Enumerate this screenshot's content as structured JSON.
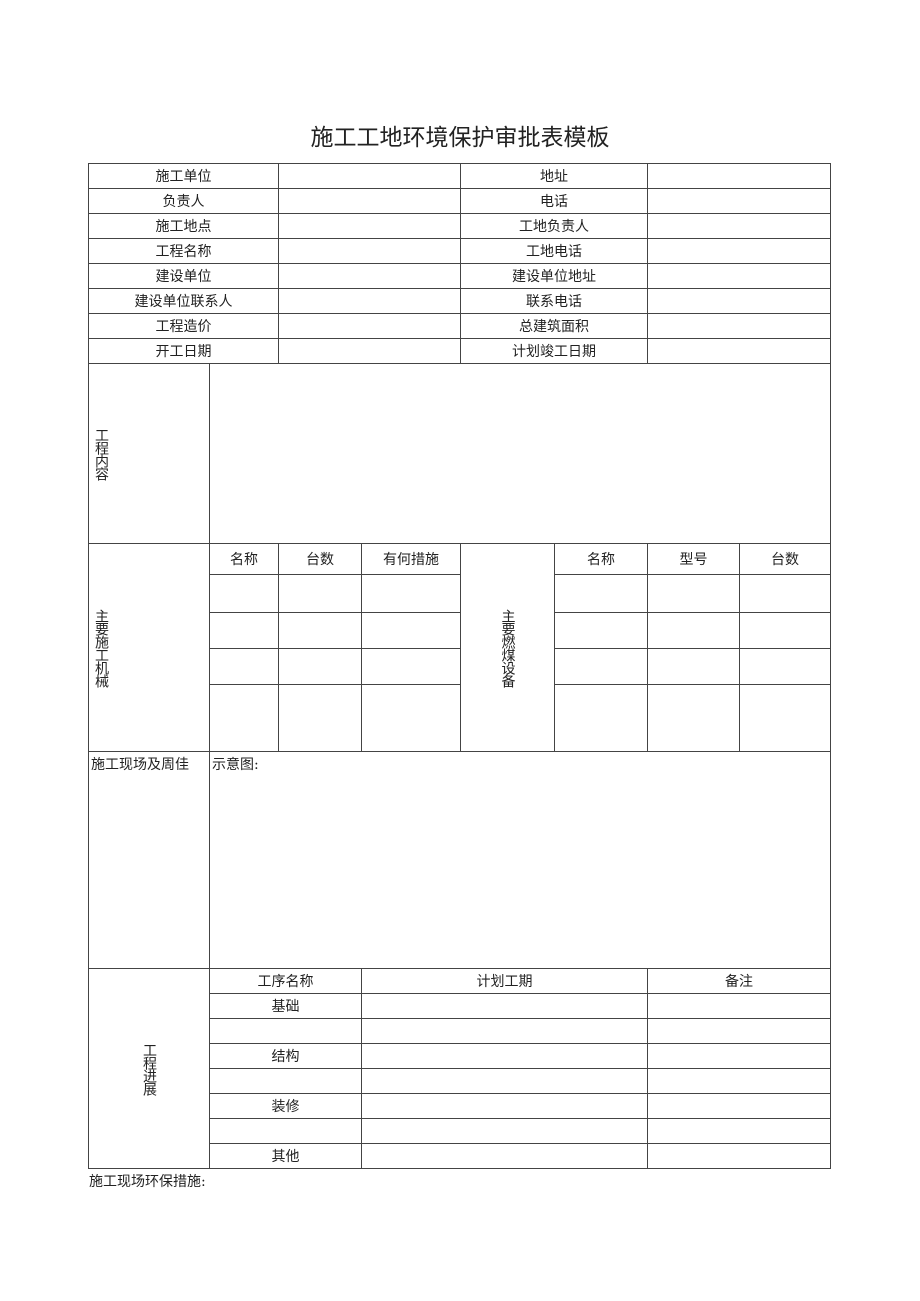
{
  "title": "施工工地环境保护审批表模板",
  "info_rows": [
    {
      "left": "施工单位",
      "right": "地址"
    },
    {
      "left": "负责人",
      "right": "电话"
    },
    {
      "left": "施工地点",
      "right": "工地负责人"
    },
    {
      "left": "工程名称",
      "right": "工地电话"
    },
    {
      "left": "建设单位",
      "right": "建设单位地址"
    },
    {
      "left": "建设单位联系人",
      "right": "联系电话"
    },
    {
      "left": "工程造价",
      "right": "总建筑面积"
    },
    {
      "left": "开工日期",
      "right": "计划竣工日期"
    }
  ],
  "content_label": "工程内容",
  "machinery": {
    "label": "主要施工机械",
    "headers": [
      "名称",
      "台数",
      "有何措施"
    ]
  },
  "coal": {
    "label": "主要燃煤设备",
    "headers": [
      "名称",
      "型号",
      "台数"
    ]
  },
  "site": {
    "label": "施工现场及周佳",
    "sketch_label": "示意图:"
  },
  "progress": {
    "label": "工程进展",
    "headers": [
      "工序名称",
      "计划工期",
      "备注"
    ],
    "rows": [
      "基础",
      "",
      "结构",
      "",
      "装修",
      "",
      "其他"
    ]
  },
  "footer": "施工现场环保措施:"
}
